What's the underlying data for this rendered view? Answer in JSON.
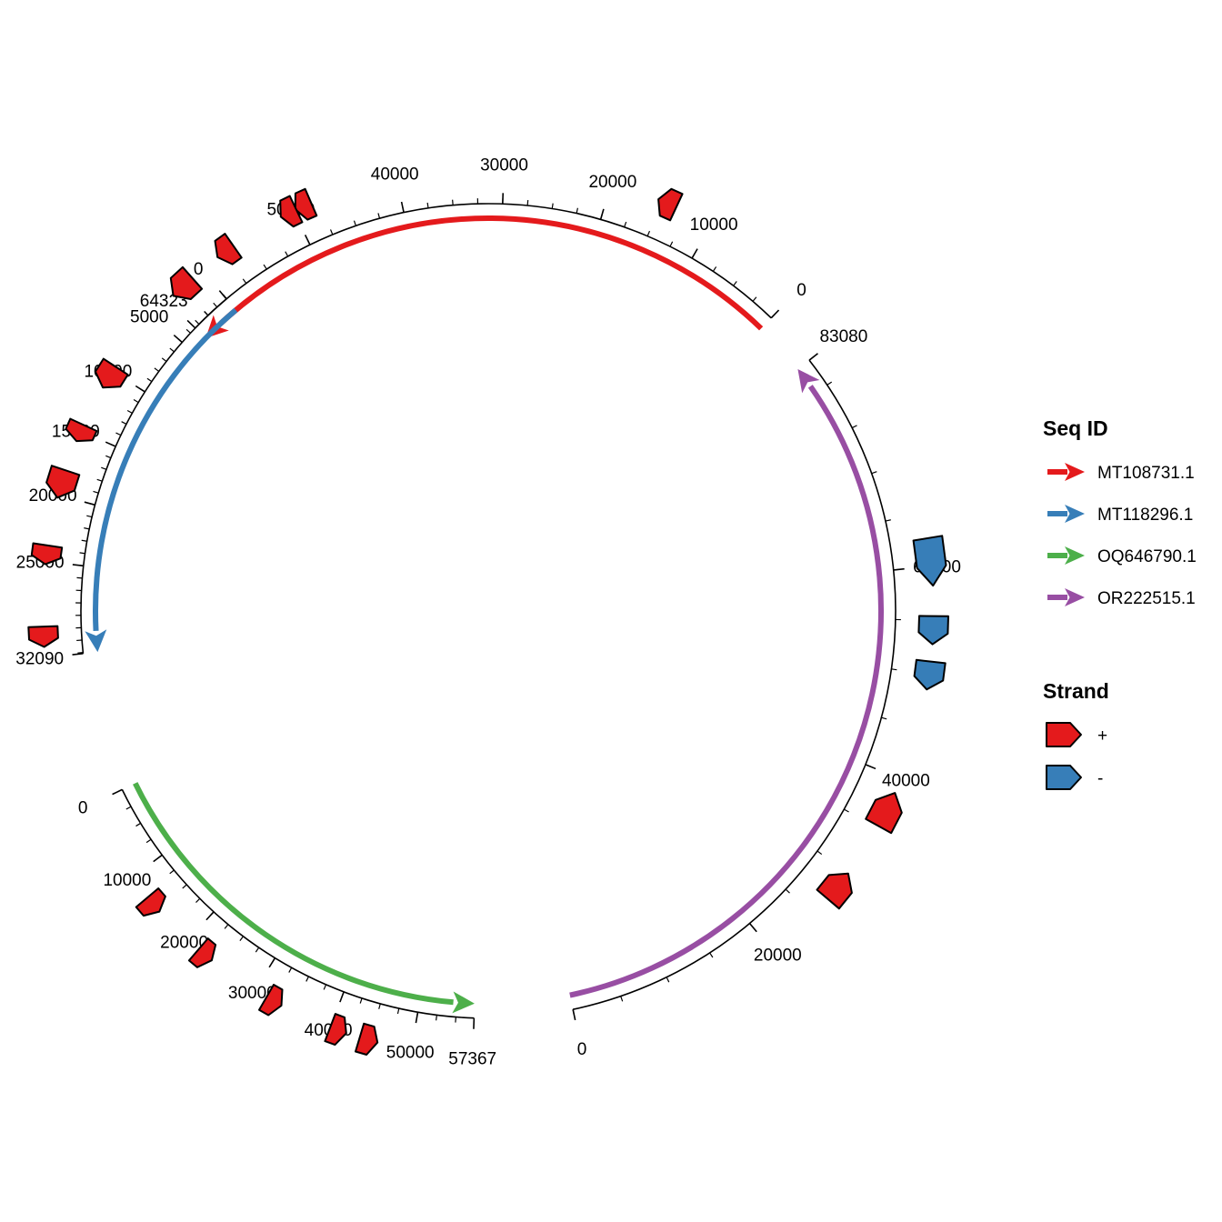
{
  "chart_data": {
    "type": "circular-genome-map",
    "title": "",
    "legend_placement": "right",
    "sequences": [
      {
        "id": "MT108731.1",
        "color": "#E41A1C",
        "length": 64323,
        "ticks": [
          0,
          10000,
          20000,
          30000,
          40000,
          50000,
          64323
        ],
        "features": [
          {
            "start": 13600,
            "end": 15400,
            "strand": "+"
          },
          {
            "start": 48400,
            "end": 49600,
            "strand": "+"
          },
          {
            "start": 49800,
            "end": 51200,
            "strand": "+"
          },
          {
            "start": 56400,
            "end": 58200,
            "strand": "+"
          },
          {
            "start": 61200,
            "end": 63600,
            "strand": "+"
          }
        ]
      },
      {
        "id": "MT118296.1",
        "color": "#377EB8",
        "length": 32090,
        "ticks": [
          0,
          5000,
          10000,
          15000,
          20000,
          25000,
          32090
        ],
        "features": [
          {
            "start": 9600,
            "end": 11400,
            "strand": "+"
          },
          {
            "start": 14500,
            "end": 15800,
            "strand": "+"
          },
          {
            "start": 18100,
            "end": 20200,
            "strand": "+"
          },
          {
            "start": 23800,
            "end": 25200,
            "strand": "+"
          },
          {
            "start": 29800,
            "end": 31300,
            "strand": "+"
          }
        ]
      },
      {
        "id": "OQ646790.1",
        "color": "#4DAF4A",
        "length": 57367,
        "ticks": [
          0,
          10000,
          20000,
          30000,
          40000,
          50000,
          57367
        ],
        "features": [
          {
            "start": 13000,
            "end": 15200,
            "strand": "+"
          },
          {
            "start": 21800,
            "end": 23600,
            "strand": "+"
          },
          {
            "start": 31800,
            "end": 33400,
            "strand": "+"
          },
          {
            "start": 40200,
            "end": 41800,
            "strand": "+"
          },
          {
            "start": 43700,
            "end": 45900,
            "strand": "+"
          }
        ]
      },
      {
        "id": "OR222515.1",
        "color": "#984EA3",
        "length": 83080,
        "ticks": [
          0,
          20000,
          40000,
          60000,
          83080
        ],
        "features": [
          {
            "start": 27000,
            "end": 30000,
            "strand": "+"
          },
          {
            "start": 35200,
            "end": 38600,
            "strand": "+"
          },
          {
            "start": 48600,
            "end": 51200,
            "strand": "-"
          },
          {
            "start": 52800,
            "end": 55400,
            "strand": "-"
          },
          {
            "start": 58200,
            "end": 62600,
            "strand": "-"
          }
        ]
      }
    ],
    "legend": {
      "seq_title": "Seq ID",
      "seq_entries": [
        {
          "label": "MT108731.1",
          "color": "#E41A1C"
        },
        {
          "label": "MT118296.1",
          "color": "#377EB8"
        },
        {
          "label": "OQ646790.1",
          "color": "#4DAF4A"
        },
        {
          "label": "OR222515.1",
          "color": "#984EA3"
        }
      ],
      "strand_title": "Strand",
      "strand_entries": [
        {
          "label": "+",
          "color": "#E41A1C"
        },
        {
          "label": "-",
          "color": "#377EB8"
        }
      ]
    }
  }
}
